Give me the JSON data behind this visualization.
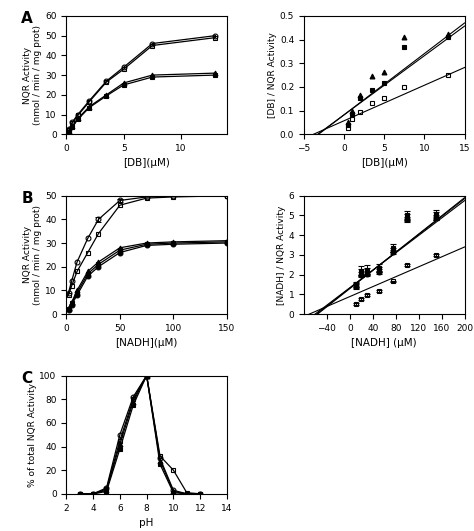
{
  "panel_A_left": {
    "series": [
      {
        "marker": "o",
        "fillstyle": "none",
        "x": [
          0.25,
          0.5,
          1.0,
          2.0,
          3.5,
          5.0,
          7.5,
          13.0
        ],
        "y": [
          2.5,
          6.0,
          10.0,
          17.0,
          27.0,
          34.0,
          46.0,
          50.0
        ]
      },
      {
        "marker": "s",
        "fillstyle": "none",
        "x": [
          0.25,
          0.5,
          1.0,
          2.0,
          3.5,
          5.0,
          7.5,
          13.0
        ],
        "y": [
          2.0,
          5.5,
          9.5,
          16.5,
          26.5,
          33.0,
          45.0,
          49.0
        ]
      },
      {
        "marker": "^",
        "fillstyle": "full",
        "x": [
          0.25,
          0.5,
          1.0,
          2.0,
          3.5,
          5.0,
          7.5,
          13.0
        ],
        "y": [
          1.5,
          4.0,
          8.0,
          14.0,
          20.0,
          26.0,
          30.0,
          31.0
        ]
      },
      {
        "marker": "s",
        "fillstyle": "full",
        "x": [
          0.25,
          0.5,
          1.0,
          2.0,
          3.5,
          5.0,
          7.5,
          13.0
        ],
        "y": [
          1.0,
          3.5,
          7.5,
          13.5,
          19.5,
          25.0,
          29.0,
          30.0
        ]
      }
    ],
    "xlabel": "[DB](μM)",
    "ylabel": "NQR Activity\n(nmol / min / mg prot)",
    "xlim": [
      0,
      14
    ],
    "ylim": [
      0,
      60
    ],
    "yticks": [
      0,
      10,
      20,
      30,
      40,
      50,
      60
    ],
    "xticks": [
      0,
      5,
      10
    ]
  },
  "panel_A_right": {
    "lines": [
      {
        "x": [
          -5,
          15
        ],
        "y": [
          -0.047,
          0.47
        ]
      },
      {
        "x": [
          -5,
          15
        ],
        "y": [
          -0.043,
          0.457
        ]
      },
      {
        "x": [
          -5,
          15
        ],
        "y": [
          -0.018,
          0.282
        ]
      }
    ],
    "series": [
      {
        "marker": "^",
        "fillstyle": "full",
        "x": [
          0.5,
          1.0,
          2.0,
          3.5,
          5.0,
          7.5,
          13.0
        ],
        "y": [
          0.05,
          0.1,
          0.165,
          0.245,
          0.265,
          0.41,
          0.425
        ]
      },
      {
        "marker": "s",
        "fillstyle": "full",
        "x": [
          0.5,
          1.0,
          2.0,
          3.5,
          5.0,
          7.5,
          13.0
        ],
        "y": [
          0.04,
          0.085,
          0.155,
          0.185,
          0.215,
          0.37,
          0.41
        ]
      },
      {
        "marker": "s",
        "fillstyle": "none",
        "x": [
          0.5,
          1.0,
          2.0,
          3.5,
          5.0,
          7.5,
          13.0
        ],
        "y": [
          0.025,
          0.065,
          0.095,
          0.13,
          0.155,
          0.2,
          0.25
        ]
      }
    ],
    "xlabel": "[DB](μM)",
    "ylabel": "[DB] / NQR Activity",
    "xlim": [
      -5,
      15
    ],
    "ylim": [
      0.0,
      0.5
    ],
    "yticks": [
      0.0,
      0.1,
      0.2,
      0.3,
      0.4,
      0.5
    ],
    "xticks": [
      -5,
      0,
      5,
      10,
      15
    ]
  },
  "panel_B_left": {
    "series": [
      {
        "marker": "o",
        "fillstyle": "none",
        "x": [
          2,
          5,
          10,
          20,
          30,
          50,
          75,
          100,
          150
        ],
        "y": [
          9.0,
          14.0,
          22.0,
          32.0,
          40.0,
          48.0,
          49.5,
          50.0,
          50.0
        ],
        "yerr": [
          0,
          0,
          0,
          0,
          1.0,
          0.8,
          0,
          0,
          0
        ]
      },
      {
        "marker": "s",
        "fillstyle": "none",
        "x": [
          2,
          5,
          10,
          20,
          30,
          50,
          75,
          100,
          150
        ],
        "y": [
          8.0,
          12.0,
          18.0,
          26.0,
          34.0,
          46.0,
          49.0,
          49.5,
          50.0
        ],
        "yerr": [
          0,
          0,
          0,
          0,
          0,
          0,
          0,
          0,
          0
        ]
      },
      {
        "marker": "^",
        "fillstyle": "full",
        "x": [
          2,
          5,
          10,
          20,
          30,
          50,
          75,
          100,
          150
        ],
        "y": [
          2.5,
          5.0,
          10.0,
          18.0,
          22.0,
          28.0,
          30.0,
          30.5,
          31.0
        ],
        "yerr": [
          0,
          0,
          0,
          0,
          0,
          0,
          0,
          0,
          0
        ]
      },
      {
        "marker": "s",
        "fillstyle": "full",
        "x": [
          2,
          5,
          10,
          20,
          30,
          50,
          75,
          100,
          150
        ],
        "y": [
          2.0,
          4.5,
          9.0,
          17.0,
          21.0,
          27.0,
          29.5,
          30.0,
          30.5
        ],
        "yerr": [
          0,
          0,
          0,
          0,
          0,
          0,
          0,
          0,
          0
        ]
      },
      {
        "marker": "o",
        "fillstyle": "full",
        "x": [
          2,
          5,
          10,
          20,
          30,
          50,
          75,
          100,
          150
        ],
        "y": [
          1.5,
          4.0,
          8.0,
          16.0,
          20.0,
          26.0,
          29.0,
          29.5,
          30.0
        ],
        "yerr": [
          0,
          0,
          0,
          0,
          0,
          0,
          0,
          0,
          0
        ]
      }
    ],
    "xlabel": "[NADH](μM)",
    "ylabel": "NQR Activity\n(nmol / min / mg prot)",
    "xlim": [
      0,
      150
    ],
    "ylim": [
      0,
      50
    ],
    "yticks": [
      0,
      10,
      20,
      30,
      40,
      50
    ],
    "xticks": [
      0,
      50,
      100,
      150
    ]
  },
  "panel_B_right": {
    "lines": [
      {
        "x": [
          -80,
          200
        ],
        "y": [
          -0.55,
          5.9
        ]
      },
      {
        "x": [
          -80,
          200
        ],
        "y": [
          -0.5,
          5.85
        ]
      },
      {
        "x": [
          -80,
          200
        ],
        "y": [
          -0.43,
          5.75
        ]
      },
      {
        "x": [
          -80,
          200
        ],
        "y": [
          -0.12,
          3.4
        ]
      }
    ],
    "series": [
      {
        "marker": "s",
        "fillstyle": "full",
        "x": [
          10,
          20,
          30,
          50,
          75,
          100,
          150
        ],
        "y": [
          1.5,
          2.2,
          2.25,
          2.35,
          3.35,
          5.0,
          5.05
        ],
        "yerr": [
          0.12,
          0.22,
          0.22,
          0.18,
          0.18,
          0.25,
          0.25
        ]
      },
      {
        "marker": "^",
        "fillstyle": "full",
        "x": [
          10,
          20,
          30,
          50,
          75,
          100,
          150
        ],
        "y": [
          1.45,
          2.1,
          2.15,
          2.25,
          3.25,
          4.9,
          4.97
        ],
        "yerr": [
          0.12,
          0.18,
          0.18,
          0.12,
          0.12,
          0.18,
          0.18
        ]
      },
      {
        "marker": "o",
        "fillstyle": "full",
        "x": [
          10,
          20,
          30,
          50,
          75,
          100,
          150
        ],
        "y": [
          1.4,
          2.0,
          2.05,
          2.15,
          3.15,
          4.8,
          4.9
        ],
        "yerr": [
          0.12,
          0.12,
          0.12,
          0.12,
          0.12,
          0.12,
          0.12
        ]
      },
      {
        "marker": "s",
        "fillstyle": "none",
        "x": [
          10,
          20,
          30,
          50,
          75,
          100,
          150
        ],
        "y": [
          0.5,
          0.75,
          0.95,
          1.15,
          1.65,
          2.5,
          3.0
        ],
        "yerr": [
          0.05,
          0.05,
          0.05,
          0.05,
          0.05,
          0.05,
          0.05
        ]
      }
    ],
    "xlabel": "[NADH] (μM)",
    "ylabel": "[NADH] / NQR Activity",
    "xlim": [
      -80,
      200
    ],
    "ylim": [
      0,
      6
    ],
    "yticks": [
      0,
      1,
      2,
      3,
      4,
      5,
      6
    ],
    "xticks": [
      -40,
      0,
      40,
      80,
      120,
      160,
      200
    ]
  },
  "panel_C": {
    "series": [
      {
        "marker": "o",
        "fillstyle": "none",
        "x": [
          3,
          4,
          5,
          6,
          7,
          8,
          9,
          10,
          11,
          12
        ],
        "y": [
          0,
          0,
          5,
          50,
          82,
          100,
          30,
          3,
          0,
          0
        ]
      },
      {
        "marker": "s",
        "fillstyle": "none",
        "x": [
          3,
          4,
          5,
          6,
          7,
          8,
          9,
          10,
          11,
          12
        ],
        "y": [
          0,
          0,
          4,
          45,
          80,
          100,
          32,
          20,
          1,
          0
        ]
      },
      {
        "marker": "^",
        "fillstyle": "full",
        "x": [
          3,
          4,
          5,
          6,
          7,
          8,
          9,
          10,
          11,
          12
        ],
        "y": [
          0,
          0,
          3,
          42,
          78,
          100,
          28,
          2,
          0,
          0
        ]
      },
      {
        "marker": "s",
        "fillstyle": "full",
        "x": [
          3,
          4,
          5,
          6,
          7,
          8,
          9,
          10,
          11,
          12
        ],
        "y": [
          0,
          0,
          2,
          38,
          75,
          100,
          25,
          1,
          0,
          0
        ]
      }
    ],
    "xlabel": "pH",
    "ylabel": "% of total NQR Activity",
    "xlim": [
      2,
      14
    ],
    "ylim": [
      0,
      100
    ],
    "xticks": [
      2,
      4,
      6,
      8,
      10,
      12,
      14
    ],
    "yticks": [
      0,
      20,
      40,
      60,
      80,
      100
    ]
  },
  "label_A": "A",
  "label_B": "B",
  "label_C": "C"
}
